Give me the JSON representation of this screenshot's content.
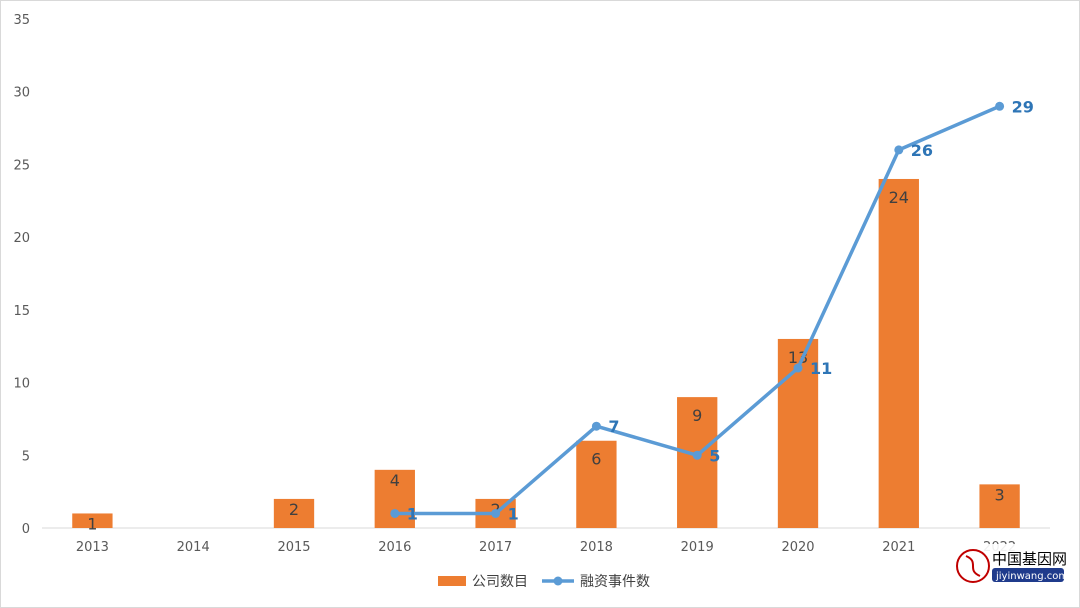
{
  "chart_data": {
    "type": "bar",
    "categories": [
      "2013",
      "2014",
      "2015",
      "2016",
      "2017",
      "2018",
      "2019",
      "2020",
      "2021",
      "2022"
    ],
    "series": [
      {
        "name": "公司数目",
        "type": "bar",
        "color": "#ed7d31",
        "values": [
          1,
          null,
          2,
          4,
          2,
          6,
          9,
          13,
          24,
          3
        ]
      },
      {
        "name": "融资事件数",
        "type": "line",
        "color": "#5b9bd5",
        "values": [
          null,
          null,
          null,
          1,
          1,
          7,
          5,
          11,
          26,
          29
        ]
      }
    ],
    "ylim": [
      0,
      35
    ],
    "yticks": [
      0,
      5,
      10,
      15,
      20,
      25,
      30,
      35
    ],
    "legend": "bottom",
    "grid": false
  },
  "watermark": {
    "text": "中国基因网",
    "url": "jiyinwang.com"
  }
}
